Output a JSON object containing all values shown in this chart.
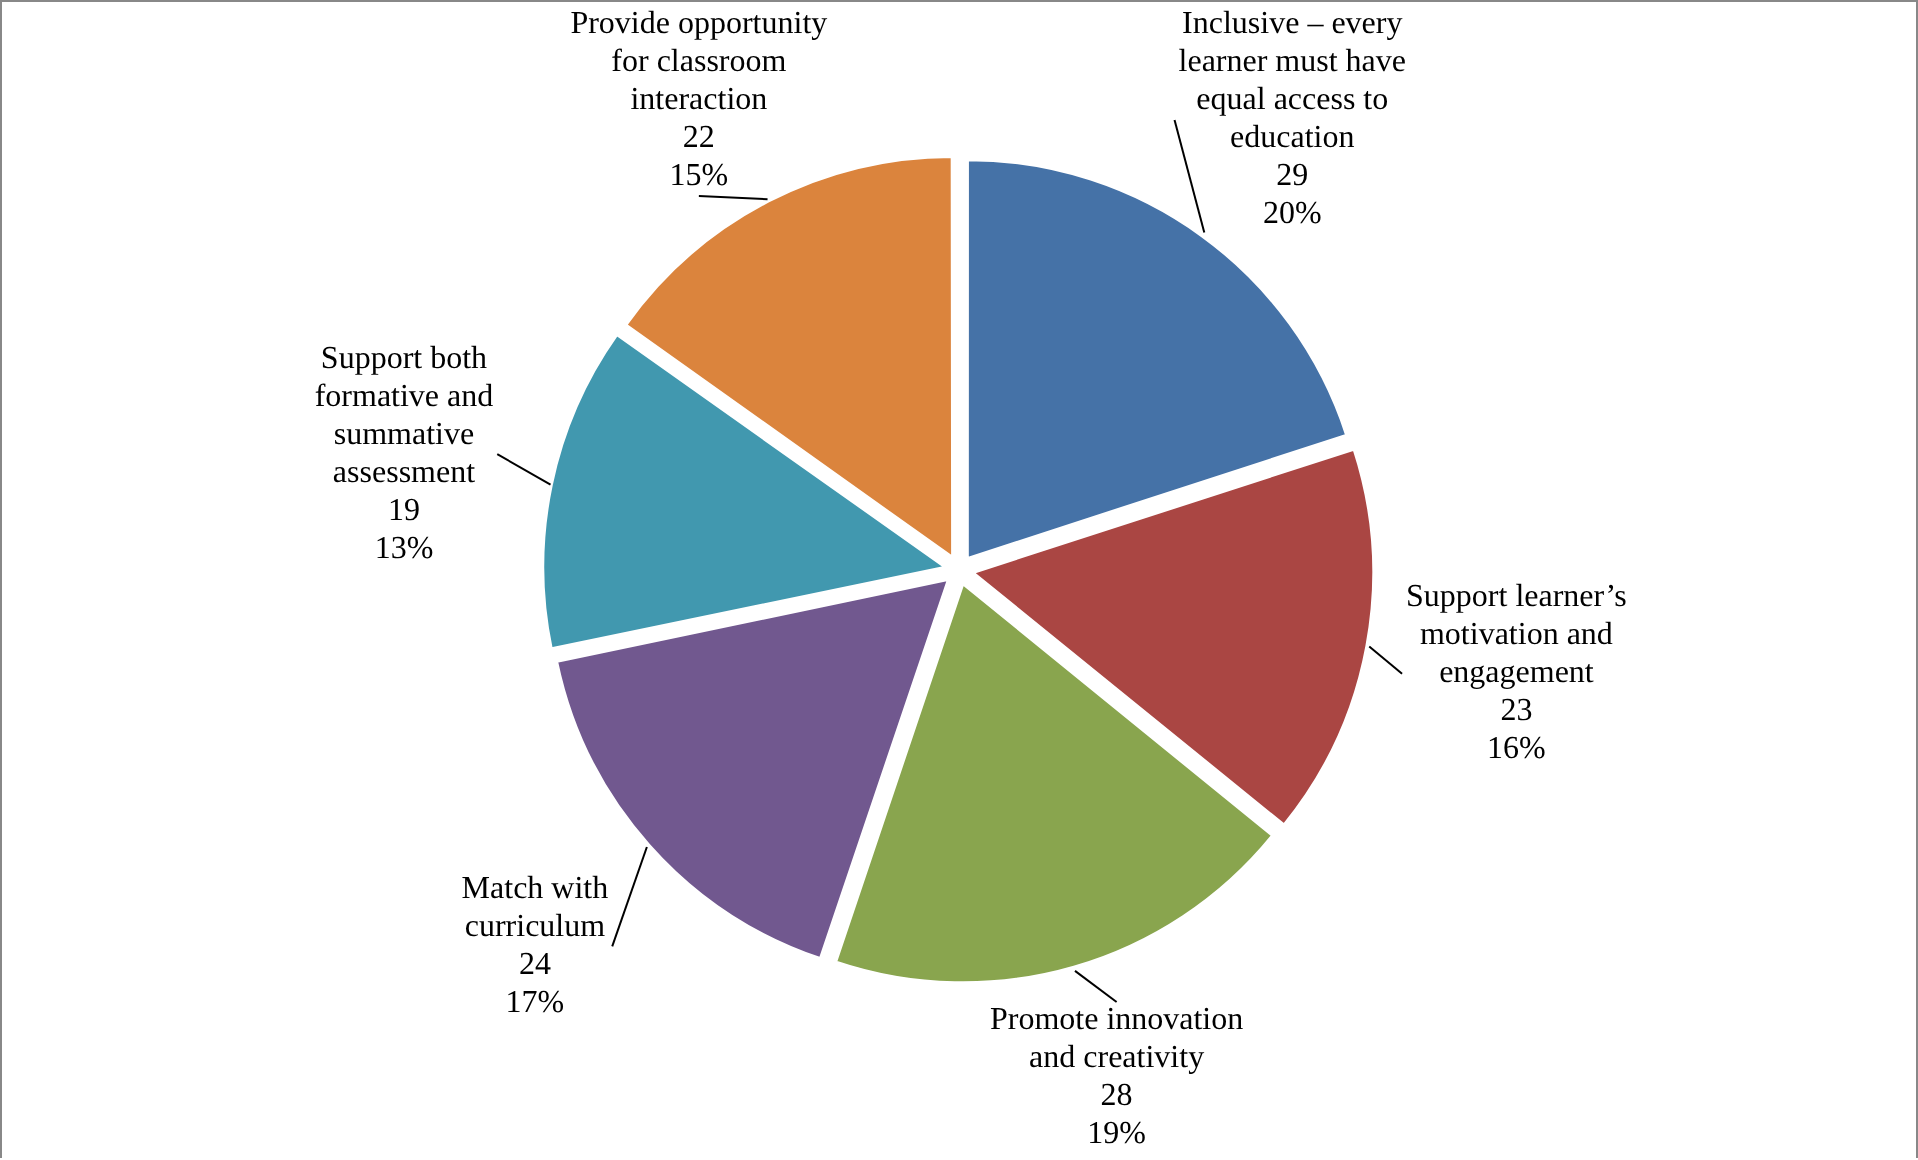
{
  "chart_data": {
    "type": "pie",
    "categories": [
      "Inclusive – every learner must have equal access to education",
      "Support learner’s motivation and engagement",
      "Promote innovation and creativity",
      "Match with curriculum",
      "Support both formative and summative assessment",
      "Provide opportunity for classroom interaction"
    ],
    "values": [
      29,
      23,
      28,
      24,
      19,
      22
    ],
    "colors": [
      "#4572a7",
      "#aa4643",
      "#89a54e",
      "#71588f",
      "#4198af",
      "#db843d"
    ],
    "value_labels": [
      "29\n20%",
      "23\n16%",
      "28\n19%",
      "24\n17%",
      "19\n13%",
      "22\n15%"
    ],
    "legend": false
  }
}
